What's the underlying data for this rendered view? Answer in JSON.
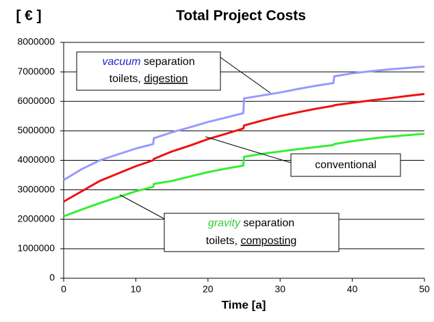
{
  "chart_data": {
    "type": "line",
    "title": "Total Project Costs",
    "ylabel": "[ € ]",
    "xlabel": "Time [a]",
    "x": [
      0,
      2.5,
      5,
      7.5,
      10,
      12.4,
      12.5,
      15,
      17.5,
      20,
      22.5,
      24.9,
      25,
      27.5,
      30,
      32.5,
      35,
      37.4,
      37.5,
      40,
      42.5,
      45,
      47.5,
      50
    ],
    "series": [
      {
        "name": "vacuum",
        "color": "#9999ff",
        "values": [
          3330000,
          3700000,
          4000000,
          4200000,
          4400000,
          4550000,
          4750000,
          4950000,
          5120000,
          5300000,
          5450000,
          5600000,
          6100000,
          6200000,
          6300000,
          6420000,
          6530000,
          6620000,
          6850000,
          6950000,
          7020000,
          7080000,
          7130000,
          7180000
        ]
      },
      {
        "name": "conventional",
        "color": "#ee1111",
        "values": [
          2600000,
          2950000,
          3300000,
          3550000,
          3800000,
          4000000,
          4050000,
          4300000,
          4500000,
          4720000,
          4900000,
          5080000,
          5180000,
          5350000,
          5500000,
          5630000,
          5750000,
          5850000,
          5870000,
          5950000,
          6030000,
          6100000,
          6180000,
          6250000
        ]
      },
      {
        "name": "gravity",
        "color": "#33ee33",
        "values": [
          2100000,
          2330000,
          2550000,
          2750000,
          2950000,
          3100000,
          3200000,
          3300000,
          3450000,
          3600000,
          3720000,
          3820000,
          4120000,
          4220000,
          4300000,
          4380000,
          4450000,
          4520000,
          4550000,
          4650000,
          4730000,
          4800000,
          4850000,
          4900000
        ]
      }
    ],
    "annotations": [
      {
        "lines": [
          [
            "vacuum",
            "separation"
          ],
          [
            "toilets,",
            "digestion"
          ]
        ]
      },
      {
        "lines": [
          [
            "conventional"
          ]
        ]
      },
      {
        "lines": [
          [
            "gravity",
            "separation"
          ],
          [
            "toilets,",
            "composting"
          ]
        ]
      }
    ],
    "xlim": [
      0,
      50
    ],
    "xticks": [
      0,
      10,
      20,
      30,
      40,
      50
    ],
    "ylim": [
      0,
      8000000
    ],
    "yticks": [
      0,
      1000000,
      2000000,
      3000000,
      4000000,
      5000000,
      6000000,
      7000000,
      8000000
    ],
    "grid": true
  }
}
